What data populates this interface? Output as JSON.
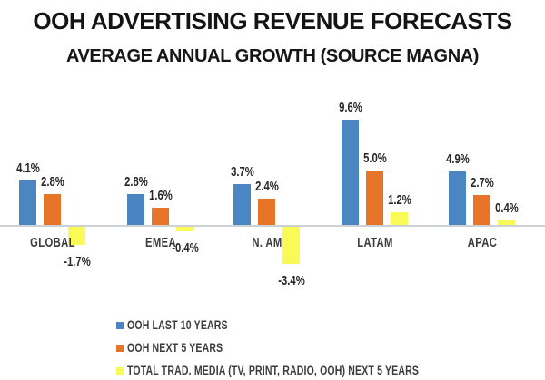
{
  "title": "OOH ADVERTISING REVENUE FORECASTS",
  "subtitle": "AVERAGE ANNUAL GROWTH (SOURCE MAGNA)",
  "colors": {
    "series_blue": "#4C86C2",
    "series_orange": "#E8742A",
    "series_yellow": "#F9F957",
    "axis": "#CDD1D4",
    "title_text": "#141414",
    "label_text": "#3B3B3B"
  },
  "chart_data": {
    "type": "bar",
    "title": "OOH ADVERTISING REVENUE FORECASTS",
    "subtitle": "AVERAGE ANNUAL GROWTH (SOURCE MAGNA)",
    "categories": [
      "GLOBAL",
      "EMEA",
      "N. AM",
      "LATAM",
      "APAC"
    ],
    "series": [
      {
        "name": "OOH LAST 10 YEARS",
        "color": "#4C86C2",
        "values": [
          4.1,
          2.8,
          3.7,
          9.6,
          4.9
        ],
        "labels": [
          "4.1%",
          "2.8%",
          "3.7%",
          "9.6%",
          "4.9%"
        ]
      },
      {
        "name": "OOH NEXT 5 YEARS",
        "color": "#E8742A",
        "values": [
          2.8,
          1.6,
          2.4,
          5.0,
          2.7
        ],
        "labels": [
          "2.8%",
          "1.6%",
          "2.4%",
          "5.0%",
          "2.7%"
        ]
      },
      {
        "name": "TOTAL TRAD. MEDIA (TV, PRINT, RADIO, OOH) NEXT 5 YEARS",
        "color": "#F9F957",
        "values": [
          -1.7,
          -0.4,
          -3.4,
          1.2,
          0.4
        ],
        "labels": [
          "-1.7%",
          "-0.4%",
          "-3.4%",
          "1.2%",
          "0.4%"
        ]
      }
    ],
    "xlabel": "",
    "ylabel": "",
    "ylim": [
      -4,
      10
    ],
    "grid": false,
    "value_labels_shown": true,
    "legend_position": "bottom-left"
  }
}
